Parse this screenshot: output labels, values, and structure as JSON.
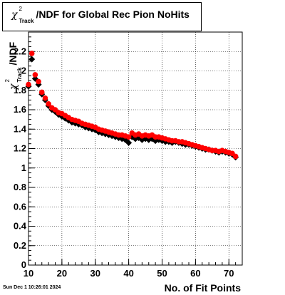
{
  "title": {
    "symbol": "χ",
    "sup": "2",
    "sub": "Track",
    "text": "/NDF for Global Rec Pion NoHits"
  },
  "timestamp": "Sun Dec  1 10:26:01 2024",
  "chart_data": {
    "type": "scatter",
    "xlabel": "No. of Fit Points",
    "ylabel_symbol": "χ",
    "ylabel_sup": "2",
    "ylabel_sub": "Track",
    "ylabel_text": "/NDF",
    "xlim": [
      10,
      74
    ],
    "ylim": [
      0,
      2.4
    ],
    "x_ticks": [
      10,
      20,
      30,
      40,
      50,
      60,
      70
    ],
    "y_ticks": [
      "0",
      "0.2",
      "0.4",
      "0.6",
      "0.8",
      "1",
      "1.2",
      "1.4",
      "1.6",
      "1.8",
      "2",
      "2.2"
    ],
    "grid": true,
    "colors": {
      "series_black": "#000000",
      "series_red": "#ff0000"
    },
    "series": [
      {
        "marker": "diamond",
        "color": "#000000",
        "x": [
          10,
          11,
          12,
          13,
          14,
          15,
          16,
          17,
          18,
          19,
          20,
          21,
          22,
          23,
          24,
          25,
          26,
          27,
          28,
          29,
          30,
          31,
          32,
          33,
          34,
          35,
          36,
          37,
          38,
          39,
          40,
          41,
          42,
          43,
          44,
          45,
          46,
          47,
          48,
          49,
          50,
          51,
          52,
          53,
          54,
          55,
          56,
          57,
          58,
          59,
          60,
          61,
          62,
          63,
          64,
          65,
          66,
          67,
          68,
          69,
          70,
          71,
          72
        ],
        "y": [
          1.84,
          2.12,
          1.92,
          1.86,
          1.76,
          1.7,
          1.64,
          1.6,
          1.58,
          1.55,
          1.53,
          1.51,
          1.49,
          1.47,
          1.46,
          1.45,
          1.44,
          1.42,
          1.41,
          1.4,
          1.39,
          1.37,
          1.36,
          1.35,
          1.34,
          1.33,
          1.32,
          1.31,
          1.3,
          1.29,
          1.26,
          1.32,
          1.3,
          1.31,
          1.29,
          1.3,
          1.29,
          1.3,
          1.28,
          1.29,
          1.28,
          1.27,
          1.27,
          1.26,
          1.27,
          1.26,
          1.25,
          1.24,
          1.24,
          1.23,
          1.22,
          1.21,
          1.2,
          1.19,
          1.19,
          1.18,
          1.17,
          1.16,
          1.17,
          1.16,
          1.15,
          1.14,
          1.11
        ]
      },
      {
        "marker": "circle",
        "color": "#ff0000",
        "x": [
          10,
          11,
          12,
          13,
          14,
          15,
          16,
          17,
          18,
          19,
          20,
          21,
          22,
          23,
          24,
          25,
          26,
          27,
          28,
          29,
          30,
          31,
          32,
          33,
          34,
          35,
          36,
          37,
          38,
          39,
          40,
          41,
          42,
          43,
          44,
          45,
          46,
          47,
          48,
          49,
          50,
          51,
          52,
          53,
          54,
          55,
          56,
          57,
          58,
          59,
          60,
          61,
          62,
          63,
          64,
          65,
          66,
          67,
          68,
          69,
          70,
          71,
          72
        ],
        "y": [
          1.86,
          2.18,
          1.96,
          1.89,
          1.78,
          1.72,
          1.66,
          1.62,
          1.6,
          1.57,
          1.56,
          1.54,
          1.52,
          1.5,
          1.49,
          1.48,
          1.46,
          1.45,
          1.44,
          1.43,
          1.42,
          1.4,
          1.39,
          1.38,
          1.37,
          1.36,
          1.35,
          1.34,
          1.34,
          1.33,
          1.32,
          1.36,
          1.34,
          1.35,
          1.33,
          1.34,
          1.33,
          1.34,
          1.32,
          1.32,
          1.31,
          1.3,
          1.29,
          1.28,
          1.28,
          1.27,
          1.27,
          1.26,
          1.25,
          1.24,
          1.23,
          1.22,
          1.21,
          1.2,
          1.19,
          1.18,
          1.18,
          1.17,
          1.18,
          1.17,
          1.16,
          1.15,
          1.12
        ]
      }
    ]
  }
}
